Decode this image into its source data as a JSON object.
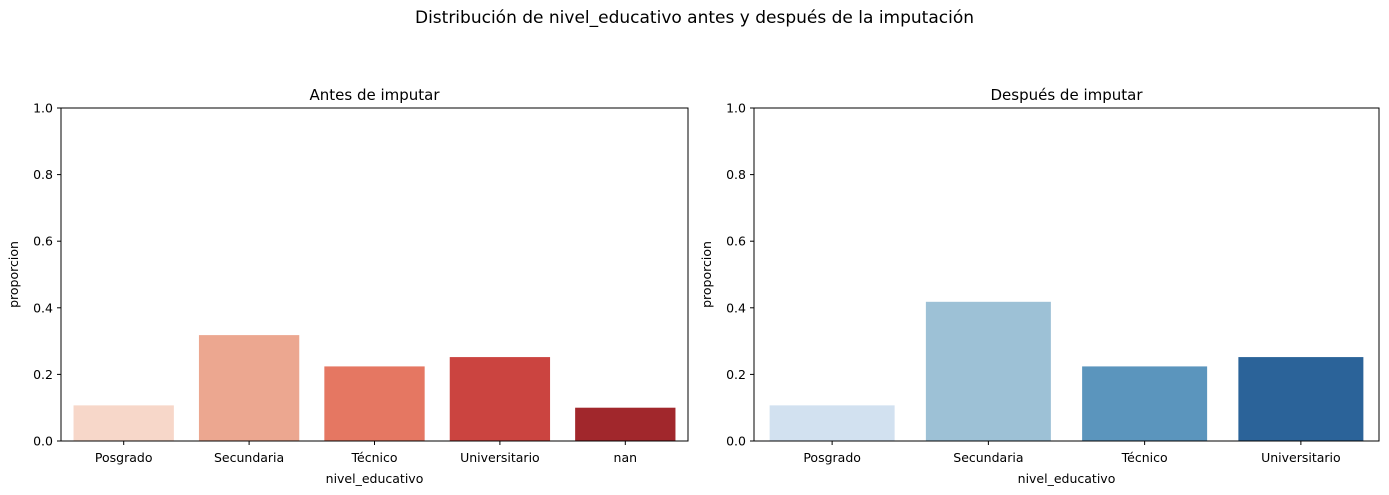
{
  "suptitle": "Distribución de nivel_educativo antes y después de la imputación",
  "chart_data": [
    {
      "type": "bar",
      "title": "Antes de imputar",
      "xlabel": "nivel_educativo",
      "ylabel": "proporcion",
      "categories": [
        "Posgrado",
        "Secundaria",
        "Técnico",
        "Universitario",
        "nan"
      ],
      "values": [
        0.107,
        0.318,
        0.224,
        0.252,
        0.1
      ],
      "colors": [
        "#f7d7c9",
        "#eca790",
        "#e57762",
        "#cb4440",
        "#a1272c"
      ],
      "ylim": [
        0,
        1.0
      ],
      "yticks": [
        "0.0",
        "0.2",
        "0.4",
        "0.6",
        "0.8",
        "1.0"
      ],
      "grid": false
    },
    {
      "type": "bar",
      "title": "Después de imputar",
      "xlabel": "nivel_educativo",
      "ylabel": "proporcion",
      "categories": [
        "Posgrado",
        "Secundaria",
        "Técnico",
        "Universitario"
      ],
      "values": [
        0.107,
        0.418,
        0.224,
        0.252
      ],
      "colors": [
        "#d2e1f0",
        "#9dc1d6",
        "#5b95bd",
        "#2b6399"
      ],
      "ylim": [
        0,
        1.0
      ],
      "yticks": [
        "0.0",
        "0.2",
        "0.4",
        "0.6",
        "0.8",
        "1.0"
      ],
      "grid": false
    }
  ]
}
